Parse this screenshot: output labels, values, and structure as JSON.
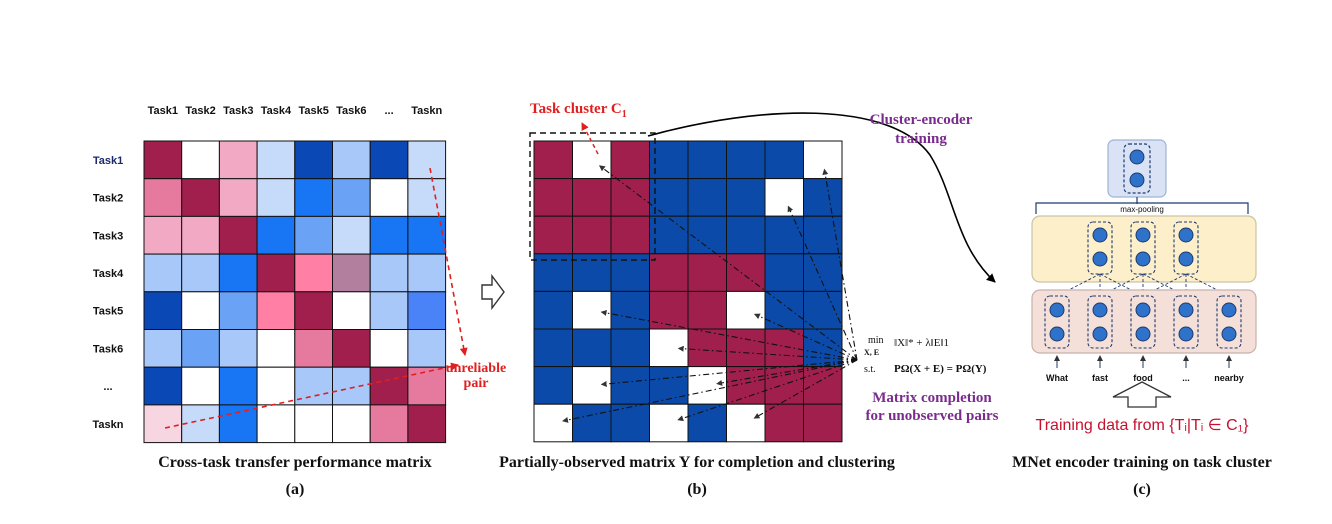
{
  "colors": {
    "deep_red": "#a01f4c",
    "pink": "#e67a9e",
    "light_pink": "#f2aac4",
    "pale_pink": "#f7d6e1",
    "hot_pink": "#ff7fa5",
    "mauve": "#b27f9e",
    "navy": "#0a48b5",
    "blue": "#1876f5",
    "mid_blue": "#6aa2f6",
    "light_blue": "#c6dbfa",
    "periwinkle": "#a8c8fa",
    "bright_blue": "#4a82f7",
    "white": "#ffffff",
    "matrix_blue": "#0b4aa8",
    "matrix_red": "#a01f4c",
    "accent_red": "#e02020",
    "accent_purple": "#7a2b8e",
    "training_red": "#c8102e"
  },
  "panel_a": {
    "col_headers": [
      "Task1",
      "Task2",
      "Task3",
      "Task4",
      "Task5",
      "Task6",
      "...",
      "Taskn"
    ],
    "row_headers": [
      "Task1",
      "Task2",
      "Task3",
      "Task4",
      "Task5",
      "Task6",
      "...",
      "Taskn"
    ],
    "cells": [
      [
        "deep_red",
        "white",
        "light_pink",
        "light_blue",
        "navy",
        "periwinkle",
        "navy",
        "light_blue"
      ],
      [
        "pink",
        "deep_red",
        "light_pink",
        "light_blue",
        "blue",
        "mid_blue",
        "white",
        "light_blue"
      ],
      [
        "light_pink",
        "light_pink",
        "deep_red",
        "blue",
        "mid_blue",
        "light_blue",
        "blue",
        "blue"
      ],
      [
        "periwinkle",
        "periwinkle",
        "blue",
        "deep_red",
        "hot_pink",
        "mauve",
        "periwinkle",
        "periwinkle"
      ],
      [
        "navy",
        "white",
        "mid_blue",
        "hot_pink",
        "deep_red",
        "white",
        "periwinkle",
        "bright_blue"
      ],
      [
        "periwinkle",
        "mid_blue",
        "periwinkle",
        "white",
        "pink",
        "deep_red",
        "white",
        "periwinkle"
      ],
      [
        "navy",
        "white",
        "blue",
        "white",
        "periwinkle",
        "periwinkle",
        "deep_red",
        "pink"
      ],
      [
        "pale_pink",
        "light_blue",
        "blue",
        "white",
        "white",
        "white",
        "pink",
        "deep_red"
      ]
    ],
    "annotation_line1": "unreliable",
    "annotation_line2": "pair",
    "caption": "Cross-task transfer performance  matrix",
    "label": "(a)"
  },
  "panel_b": {
    "cells": [
      [
        "R",
        "W",
        "R",
        "B",
        "B",
        "B",
        "B",
        "W"
      ],
      [
        "R",
        "R",
        "R",
        "B",
        "B",
        "B",
        "W",
        "B"
      ],
      [
        "R",
        "R",
        "R",
        "B",
        "B",
        "B",
        "B",
        "B"
      ],
      [
        "B",
        "B",
        "B",
        "R",
        "R",
        "R",
        "B",
        "B"
      ],
      [
        "B",
        "W",
        "B",
        "R",
        "R",
        "W",
        "B",
        "B"
      ],
      [
        "B",
        "B",
        "B",
        "W",
        "R",
        "R",
        "R",
        "B"
      ],
      [
        "B",
        "W",
        "B",
        "B",
        "W",
        "R",
        "R",
        "R"
      ],
      [
        "W",
        "B",
        "B",
        "W",
        "B",
        "W",
        "R",
        "R"
      ]
    ],
    "cluster_label": "Task cluster C",
    "cluster_subscript": "1",
    "formula_min": "min",
    "formula_vars": "X, E",
    "formula_obj": "‖X‖* + λ‖E‖1",
    "formula_st": "s.t.",
    "formula_constraint": "PΩ(X + E) = PΩ(Y)",
    "completion_line1": "Matrix completion",
    "completion_line2": "for unobserved pairs",
    "caption": "Partially-observed  matrix Y for completion and clustering",
    "label": "(b)"
  },
  "panel_c": {
    "training_line1": "Cluster-encoder",
    "training_line2": "training",
    "pool_label": "max-pooling",
    "words": [
      "What",
      "fast",
      "food",
      "...",
      "nearby"
    ],
    "training_data": "Training data from {Tᵢ|Tᵢ ∈ C₁}",
    "caption": "MNet encoder training on task cluster",
    "label": "(c)"
  }
}
